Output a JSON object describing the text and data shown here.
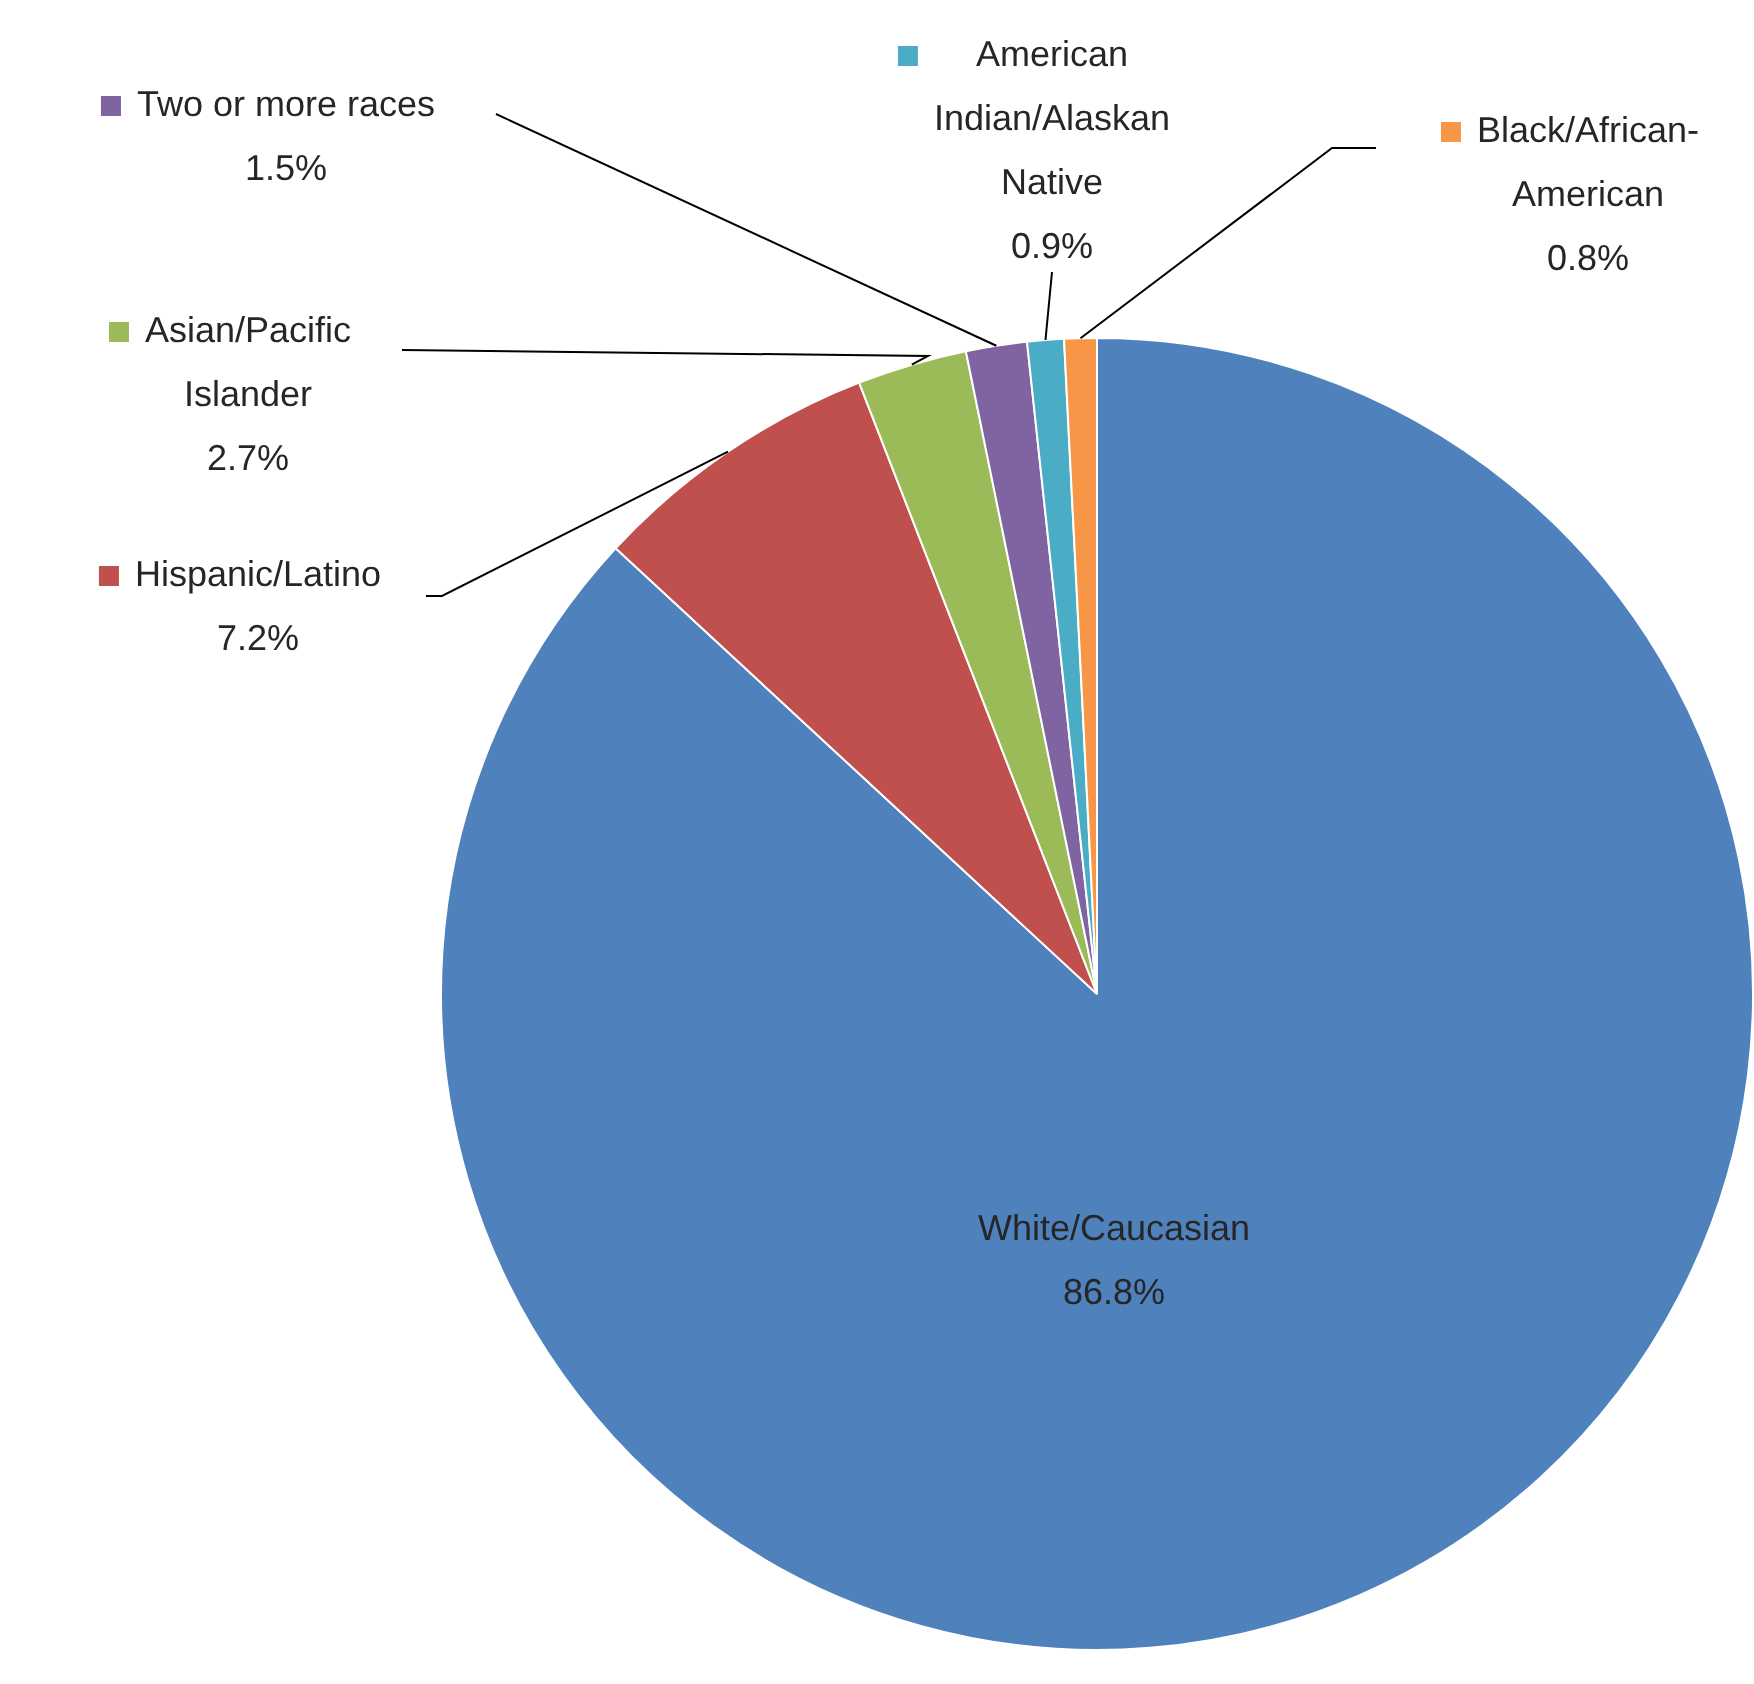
{
  "chart_data": {
    "type": "pie",
    "categories": [
      "White/Caucasian",
      "Hispanic/Latino",
      "Asian/Pacific Islander",
      "Two or more races",
      "American Indian/Alaskan Native",
      "Black/African-American"
    ],
    "values": [
      86.8,
      7.2,
      2.7,
      1.5,
      0.9,
      0.8
    ],
    "value_labels": [
      "86.8%",
      "7.2%",
      "2.7%",
      "1.5%",
      "0.9%",
      "0.8%"
    ],
    "colors": [
      "#4f81bd",
      "#c0504d",
      "#9bbb59",
      "#8064a2",
      "#4bacc6",
      "#f79646"
    ],
    "legend": "top"
  }
}
